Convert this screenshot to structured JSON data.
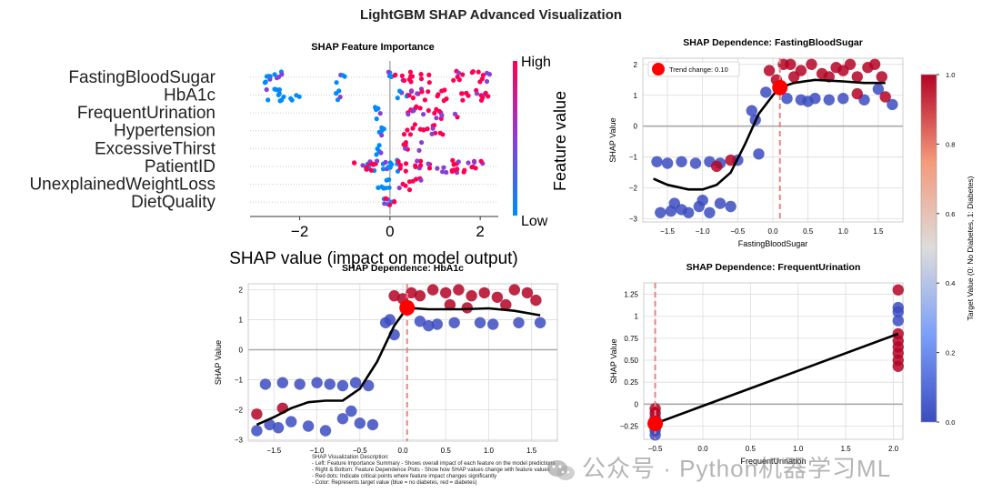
{
  "suptitle": "LightGBM SHAP Advanced Visualization",
  "colors": {
    "high": "#ff0051",
    "low": "#008bfb",
    "point_low": "#3b4cc0",
    "point_high": "#b40426",
    "critical": "#ff0000",
    "trend": "#000000",
    "vline": "#f08080"
  },
  "description": {
    "title": "SHAP Visualization Description:",
    "lines": [
      "- Left: Feature Importance Summary - Shows overall impact of each feature on the model predictions",
      "- Right & Bottom: Feature Dependence Plots - Show how SHAP values change with feature values",
      "- Red dots: Indicate critical points where feature impact changes significantly",
      "- Color: Represents target value (blue = no diabetes, red = diabetes)"
    ]
  },
  "watermark": "公众号 · Python机器学习ML",
  "colorbar": {
    "label": "Target Value (0: No Diabetes, 1: Diabetes)",
    "ticks": [
      "0.0",
      "0.2",
      "0.4",
      "0.6",
      "0.8",
      "1.0"
    ]
  },
  "chart_data": [
    {
      "type": "scatter",
      "subtype": "shap-beeswarm",
      "title": "SHAP Feature Importance",
      "xlabel": "SHAP value (impact on model output)",
      "features": [
        "FastingBloodSugar",
        "HbA1c",
        "FrequentUrination",
        "Hypertension",
        "ExcessiveThirst",
        "PatientID",
        "UnexplainedWeightLoss",
        "DietQuality"
      ],
      "xlim": [
        -3.1,
        2.4
      ],
      "xticks": [
        -2,
        0,
        2
      ],
      "xtick_labels": [
        "−2",
        "0",
        "2"
      ],
      "colorbar_label": "Feature value",
      "colorbar_high": "High",
      "colorbar_low": "Low",
      "clusters": [
        {
          "feature": "FastingBloodSugar",
          "low": [
            [
              -2.8,
              -2.2
            ],
            [
              -1.2,
              -1.0
            ],
            [
              -0.1,
              0.05
            ]
          ],
          "high": [
            [
              0.1,
              0.9
            ],
            [
              1.4,
              2.3
            ]
          ]
        },
        {
          "feature": "HbA1c",
          "low": [
            [
              -2.8,
              -2.0
            ],
            [
              -1.2,
              -1.1
            ],
            [
              0.1,
              0.4
            ]
          ],
          "high": [
            [
              0.4,
              1.3
            ],
            [
              1.5,
              2.2
            ]
          ]
        },
        {
          "feature": "FrequentUrination",
          "low": [
            [
              -0.4,
              -0.1
            ]
          ],
          "high": [
            [
              0.4,
              1.5
            ]
          ]
        },
        {
          "feature": "Hypertension",
          "low": [
            [
              -0.3,
              -0.05
            ]
          ],
          "high": [
            [
              0.3,
              1.2
            ]
          ]
        },
        {
          "feature": "ExcessiveThirst",
          "low": [
            [
              -0.3,
              -0.05
            ]
          ],
          "high": [
            [
              0.3,
              0.7
            ]
          ]
        },
        {
          "feature": "PatientID",
          "low": [
            [
              -0.6,
              0.2
            ]
          ],
          "high": [
            [
              -0.8,
              2.1
            ]
          ]
        },
        {
          "feature": "UnexplainedWeightLoss",
          "low": [
            [
              -0.3,
              0.1
            ]
          ],
          "high": [
            [
              0.2,
              0.7
            ]
          ]
        },
        {
          "feature": "DietQuality",
          "low": [
            [
              -0.2,
              0.1
            ]
          ],
          "high": [
            [
              -0.1,
              0.1
            ]
          ]
        }
      ]
    },
    {
      "type": "scatter",
      "subtype": "shap-dependence",
      "title": "SHAP Dependence: FastingBloodSugar",
      "xlabel": "FastingBloodSugar",
      "ylabel": "SHAP Value",
      "xlim": [
        -1.85,
        1.85
      ],
      "ylim": [
        -3.1,
        2.2
      ],
      "xticks": [
        -1.5,
        -1.0,
        -0.5,
        0.0,
        0.5,
        1.0,
        1.5
      ],
      "yticks": [
        -3,
        -2,
        -1,
        0,
        1,
        2
      ],
      "legend": "Trend change: 0.10",
      "legend_position": "top-left",
      "critical_x": 0.1,
      "critical_y": 1.25,
      "trend": [
        [
          -1.7,
          -1.7
        ],
        [
          -1.5,
          -1.9
        ],
        [
          -1.2,
          -2.05
        ],
        [
          -1.0,
          -2.05
        ],
        [
          -0.8,
          -1.9
        ],
        [
          -0.6,
          -1.5
        ],
        [
          -0.4,
          -0.6
        ],
        [
          -0.2,
          0.4
        ],
        [
          0.0,
          1.0
        ],
        [
          0.1,
          1.25
        ],
        [
          0.3,
          1.4
        ],
        [
          0.6,
          1.5
        ],
        [
          1.0,
          1.45
        ],
        [
          1.3,
          1.4
        ],
        [
          1.6,
          1.4
        ]
      ],
      "points_high": [
        [
          -0.8,
          -1.3
        ],
        [
          -0.6,
          -1.1
        ],
        [
          0.05,
          1.5
        ],
        [
          0.15,
          2.0
        ],
        [
          0.3,
          1.6
        ],
        [
          0.4,
          1.8
        ],
        [
          0.55,
          2.0
        ],
        [
          0.7,
          1.7
        ],
        [
          0.9,
          1.9
        ],
        [
          1.1,
          2.0
        ],
        [
          1.2,
          1.6
        ],
        [
          1.35,
          1.9
        ],
        [
          1.45,
          2.0
        ],
        [
          1.55,
          1.6
        ],
        [
          0.25,
          2.0
        ],
        [
          0.8,
          1.6
        ],
        [
          1.0,
          1.8
        ],
        [
          1.6,
          0.95
        ],
        [
          1.2,
          1.05
        ],
        [
          -0.05,
          1.8
        ]
      ],
      "points_low": [
        [
          -1.65,
          -1.15
        ],
        [
          -1.5,
          -1.2
        ],
        [
          -1.3,
          -1.15
        ],
        [
          -1.1,
          -1.2
        ],
        [
          -0.9,
          -1.15
        ],
        [
          -0.75,
          -1.2
        ],
        [
          -0.5,
          -1.1
        ],
        [
          -1.6,
          -2.8
        ],
        [
          -1.4,
          -2.5
        ],
        [
          -1.3,
          -2.7
        ],
        [
          -1.2,
          -2.8
        ],
        [
          -1.05,
          -2.6
        ],
        [
          -0.9,
          -2.8
        ],
        [
          -0.75,
          -2.5
        ],
        [
          -0.6,
          -2.6
        ],
        [
          -1.45,
          -2.75
        ],
        [
          -1.0,
          -2.4
        ],
        [
          -0.3,
          0.5
        ],
        [
          -0.25,
          0.2
        ],
        [
          -0.1,
          1.1
        ],
        [
          0.2,
          0.9
        ],
        [
          0.4,
          0.85
        ],
        [
          0.6,
          0.9
        ],
        [
          0.8,
          0.85
        ],
        [
          1.0,
          0.9
        ],
        [
          1.3,
          0.85
        ],
        [
          1.5,
          1.2
        ],
        [
          1.7,
          0.7
        ],
        [
          -0.2,
          -0.9
        ],
        [
          0.5,
          0.8
        ]
      ]
    },
    {
      "type": "scatter",
      "subtype": "shap-dependence",
      "title": "SHAP Dependence: HbA1c",
      "xlabel": "",
      "ylabel": "SHAP Value",
      "xlim": [
        -1.8,
        1.8
      ],
      "ylim": [
        -3.05,
        2.2
      ],
      "xticks": [
        -1.5,
        -1.0,
        -0.5,
        0.0,
        0.5,
        1.0,
        1.5
      ],
      "yticks": [
        -3,
        -2,
        -1,
        0,
        1,
        2
      ],
      "critical_x": 0.05,
      "critical_y": 1.4,
      "trend": [
        [
          -1.7,
          -2.5
        ],
        [
          -1.5,
          -2.25
        ],
        [
          -1.3,
          -1.95
        ],
        [
          -1.1,
          -1.75
        ],
        [
          -0.9,
          -1.7
        ],
        [
          -0.7,
          -1.7
        ],
        [
          -0.5,
          -1.3
        ],
        [
          -0.3,
          -0.4
        ],
        [
          -0.1,
          0.8
        ],
        [
          0.05,
          1.4
        ],
        [
          0.3,
          1.35
        ],
        [
          0.7,
          1.35
        ],
        [
          1.0,
          1.38
        ],
        [
          1.3,
          1.3
        ],
        [
          1.6,
          1.15
        ]
      ],
      "points_high": [
        [
          -1.7,
          -2.15
        ],
        [
          -1.4,
          -1.95
        ],
        [
          -0.1,
          1.8
        ],
        [
          0.1,
          1.9
        ],
        [
          0.2,
          1.8
        ],
        [
          0.35,
          2.0
        ],
        [
          0.5,
          1.9
        ],
        [
          0.65,
          2.0
        ],
        [
          0.8,
          1.8
        ],
        [
          0.95,
          1.9
        ],
        [
          1.1,
          1.75
        ],
        [
          1.3,
          2.0
        ],
        [
          1.45,
          1.9
        ],
        [
          1.55,
          1.65
        ],
        [
          0.0,
          1.7
        ],
        [
          0.75,
          1.4
        ],
        [
          1.2,
          1.5
        ],
        [
          0.55,
          1.5
        ]
      ],
      "points_low": [
        [
          -1.6,
          -1.15
        ],
        [
          -1.4,
          -1.1
        ],
        [
          -1.2,
          -1.15
        ],
        [
          -1.0,
          -1.1
        ],
        [
          -0.85,
          -1.15
        ],
        [
          -0.7,
          -1.2
        ],
        [
          -0.55,
          -1.1
        ],
        [
          -0.4,
          -1.2
        ],
        [
          -1.7,
          -2.7
        ],
        [
          -1.55,
          -2.5
        ],
        [
          -1.45,
          -2.6
        ],
        [
          -1.3,
          -2.4
        ],
        [
          -1.1,
          -2.55
        ],
        [
          -0.9,
          -2.7
        ],
        [
          -0.7,
          -2.3
        ],
        [
          -0.5,
          -2.45
        ],
        [
          -0.35,
          -2.5
        ],
        [
          -0.6,
          -2.05
        ],
        [
          -0.2,
          0.9
        ],
        [
          -0.1,
          0.5
        ],
        [
          0.2,
          0.95
        ],
        [
          0.4,
          0.85
        ],
        [
          0.6,
          0.9
        ],
        [
          0.9,
          0.9
        ],
        [
          1.05,
          0.85
        ],
        [
          1.35,
          0.9
        ],
        [
          1.6,
          0.9
        ],
        [
          0.3,
          0.8
        ],
        [
          -0.15,
          1.0
        ]
      ]
    },
    {
      "type": "scatter",
      "subtype": "shap-dependence",
      "title": "SHAP Dependence: FrequentUrination",
      "xlabel": "FrequentUrination",
      "ylabel": "SHAP Value",
      "xlim": [
        -0.62,
        2.1
      ],
      "ylim": [
        -0.4,
        1.38
      ],
      "xticks": [
        -0.5,
        0.0,
        0.5,
        1.0,
        1.5,
        2.0
      ],
      "yticks": [
        -0.25,
        0.0,
        0.25,
        0.5,
        0.75,
        1.0,
        1.25
      ],
      "critical_x": -0.5,
      "critical_y": -0.22,
      "trend": [
        [
          -0.5,
          -0.22
        ],
        [
          2.05,
          0.8
        ]
      ],
      "points_high": [
        [
          -0.5,
          -0.05
        ],
        [
          -0.5,
          -0.1
        ],
        [
          2.05,
          1.3
        ],
        [
          2.05,
          0.8
        ],
        [
          2.05,
          0.72
        ],
        [
          2.05,
          0.65
        ],
        [
          2.05,
          0.58
        ],
        [
          2.05,
          0.5
        ],
        [
          2.05,
          0.43
        ]
      ],
      "points_low": [
        [
          -0.5,
          -0.35
        ],
        [
          -0.5,
          -0.3
        ],
        [
          -0.5,
          -0.28
        ],
        [
          -0.5,
          -0.2
        ],
        [
          -0.5,
          -0.15
        ],
        [
          2.05,
          1.1
        ],
        [
          2.05,
          1.05
        ],
        [
          2.05,
          0.95
        ]
      ]
    }
  ]
}
